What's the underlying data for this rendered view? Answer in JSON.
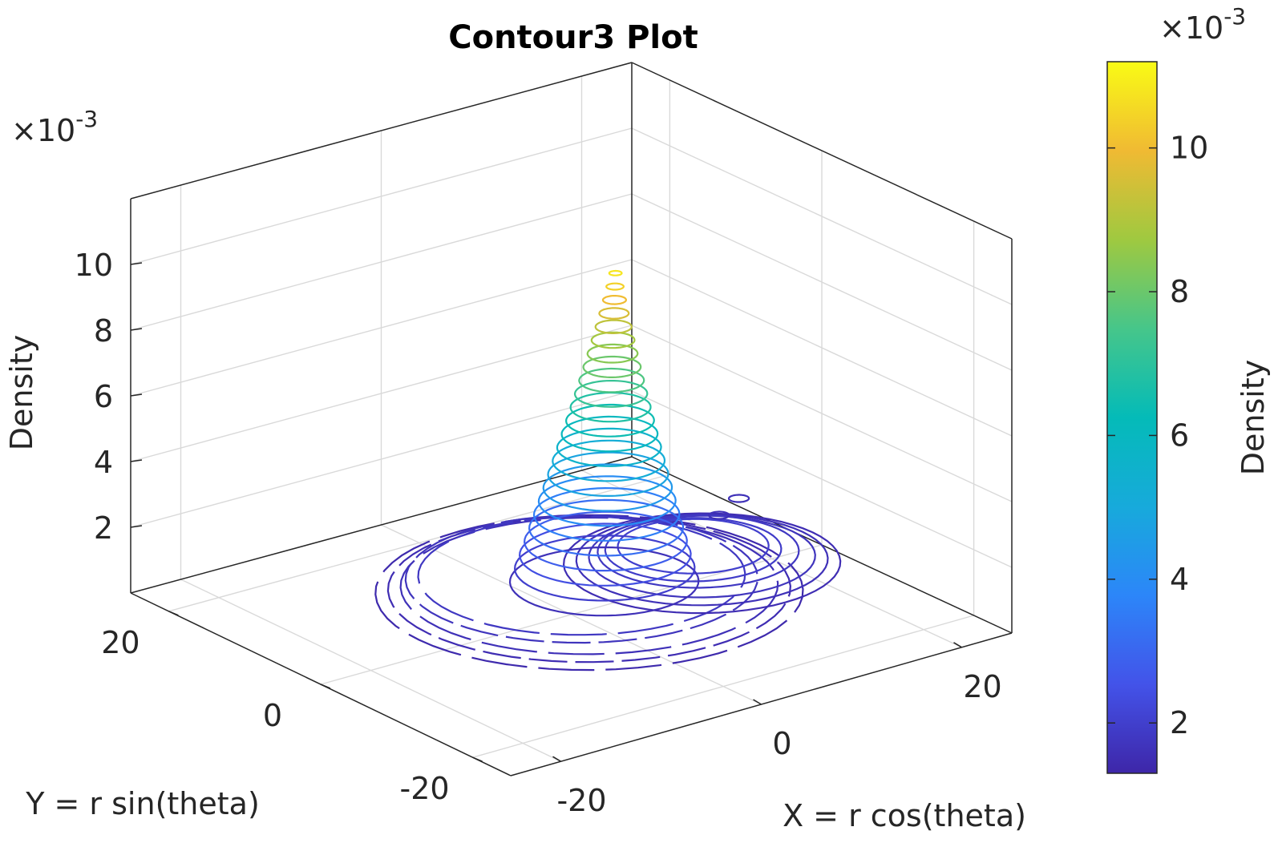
{
  "chart_data": {
    "type": "contour3",
    "title": "Contour3 Plot",
    "xlabel": "X = r cos(theta)",
    "ylabel": "Y = r sin(theta)",
    "zlabel": "Density",
    "z_exponent_label": "×10",
    "z_exponent_power": "-3",
    "x_ticks": [
      {
        "value": -20,
        "label": "-20"
      },
      {
        "value": 0,
        "label": "0"
      },
      {
        "value": 20,
        "label": "20"
      }
    ],
    "y_ticks": [
      {
        "value": -20,
        "label": "-20"
      },
      {
        "value": 0,
        "label": "0"
      },
      {
        "value": 20,
        "label": "20"
      }
    ],
    "z_ticks": [
      {
        "value": 2,
        "label": "2"
      },
      {
        "value": 4,
        "label": "4"
      },
      {
        "value": 6,
        "label": "6"
      },
      {
        "value": 8,
        "label": "8"
      },
      {
        "value": 10,
        "label": "10"
      }
    ],
    "xlim": [
      -25,
      25
    ],
    "ylim": [
      -25,
      25
    ],
    "zlim": [
      0,
      12
    ],
    "grid": true,
    "colormap": "parula",
    "colormap_stops": [
      "#3e26a8",
      "#4353e9",
      "#2c86f9",
      "#17aadb",
      "#04bbb8",
      "#46c68a",
      "#9fc940",
      "#f0ba33",
      "#f9fb15"
    ],
    "level_range": [
      1.3,
      11.2
    ],
    "peak": {
      "x": 1.0,
      "y": -4.5,
      "z": 10.8
    },
    "colorbar": {
      "label": "Density",
      "exponent_label": "×10",
      "exponent_power": "-3",
      "ticks": [
        {
          "value": 2,
          "label": "2"
        },
        {
          "value": 4,
          "label": "4"
        },
        {
          "value": 6,
          "label": "6"
        },
        {
          "value": 8,
          "label": "8"
        },
        {
          "value": 10,
          "label": "10"
        }
      ],
      "range": [
        1.3,
        11.2
      ],
      "placement": "right"
    },
    "cone_levels": [
      1.6,
      2.0,
      2.4,
      2.8,
      3.2,
      3.6,
      4.0,
      4.4,
      4.8,
      5.2,
      5.6,
      6.0,
      6.4,
      6.8,
      7.2,
      7.6,
      8.0,
      8.4,
      8.8,
      9.2,
      9.6,
      10.0,
      10.4,
      10.8
    ],
    "ring_levels": [
      {
        "z": 1.4,
        "cx": -2.0,
        "cy": -5.0,
        "r": 17.0
      },
      {
        "z": 1.5,
        "cx": -2.0,
        "cy": -5.0,
        "r": 16.0
      },
      {
        "z": 1.6,
        "cx": -2.0,
        "cy": -5.0,
        "r": 15.0
      },
      {
        "z": 1.7,
        "cx": -2.0,
        "cy": -4.0,
        "r": 14.0
      },
      {
        "z": 1.8,
        "cx": -2.0,
        "cy": -4.0,
        "r": 13.0
      }
    ],
    "inner_rings": [
      {
        "z": 1.5,
        "cx": 8.5,
        "cy": -6.0,
        "r": 11.0
      },
      {
        "z": 1.6,
        "cx": 8.5,
        "cy": -6.0,
        "r": 10.0
      },
      {
        "z": 1.7,
        "cx": 8.5,
        "cy": -6.0,
        "r": 9.0
      },
      {
        "z": 1.8,
        "cx": 8.5,
        "cy": -5.5,
        "r": 8.0
      },
      {
        "z": 1.9,
        "cx": 8.0,
        "cy": -5.5,
        "r": 7.0
      },
      {
        "z": 2.0,
        "cx": 8.0,
        "cy": -5.5,
        "r": 6.0
      }
    ],
    "islands": [
      {
        "z": 1.6,
        "x": 19.0,
        "y": 3.0
      },
      {
        "z": 1.6,
        "x": 15.5,
        "y": 1.0
      }
    ]
  }
}
